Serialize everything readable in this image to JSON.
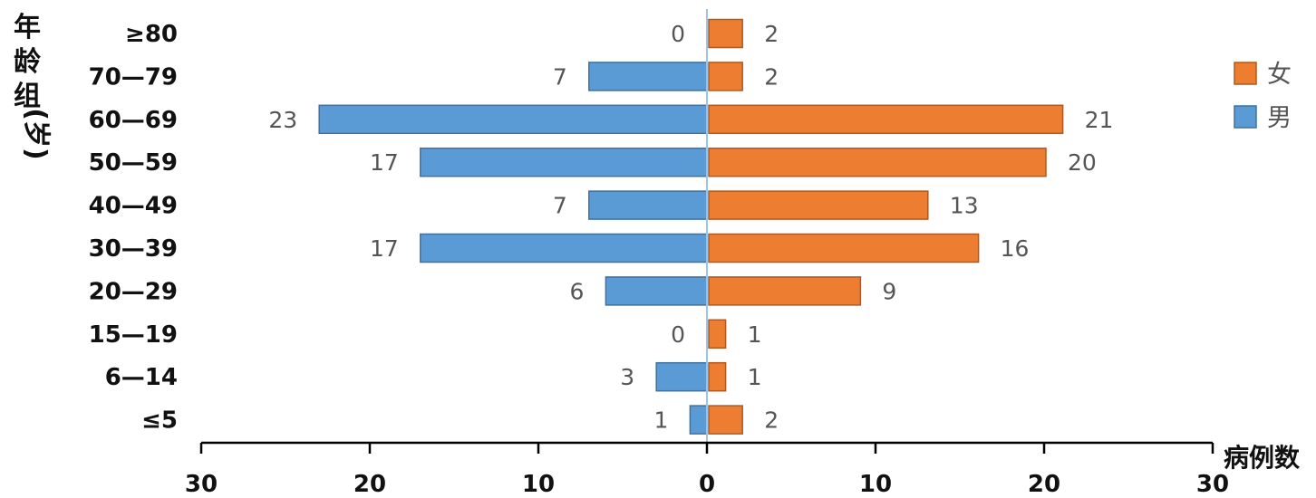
{
  "chart_data": {
    "type": "bar",
    "orientation": "horizontal-butterfly",
    "categories": [
      "≥80",
      "70—79",
      "60—69",
      "50—59",
      "40—49",
      "30—39",
      "20—29",
      "15—19",
      "6—14",
      "≤5"
    ],
    "series": [
      {
        "name": "男",
        "side": "left",
        "values": [
          0,
          7,
          23,
          17,
          7,
          17,
          6,
          0,
          3,
          1
        ]
      },
      {
        "name": "女",
        "side": "right",
        "values": [
          2,
          2,
          21,
          20,
          13,
          16,
          9,
          1,
          1,
          2
        ]
      }
    ],
    "ylabel": "年龄组(岁)",
    "xlabel": "病例数",
    "xlim": [
      -30,
      30
    ],
    "x_ticks": [
      {
        "value": -30,
        "label": "30"
      },
      {
        "value": -20,
        "label": "20"
      },
      {
        "value": -10,
        "label": "10"
      },
      {
        "value": 0,
        "label": "0"
      },
      {
        "value": 10,
        "label": "10"
      },
      {
        "value": 20,
        "label": "20"
      },
      {
        "value": 30,
        "label": "30"
      }
    ],
    "legend": {
      "position": "right",
      "items": [
        {
          "name": "女",
          "color": "#ED7D31"
        },
        {
          "name": "男",
          "color": "#5B9BD5"
        }
      ]
    },
    "colors": {
      "male": "#5B9BD5",
      "female": "#ED7D31",
      "center_line": "#9DC3E6",
      "axis": "#000000"
    },
    "grid": false
  }
}
